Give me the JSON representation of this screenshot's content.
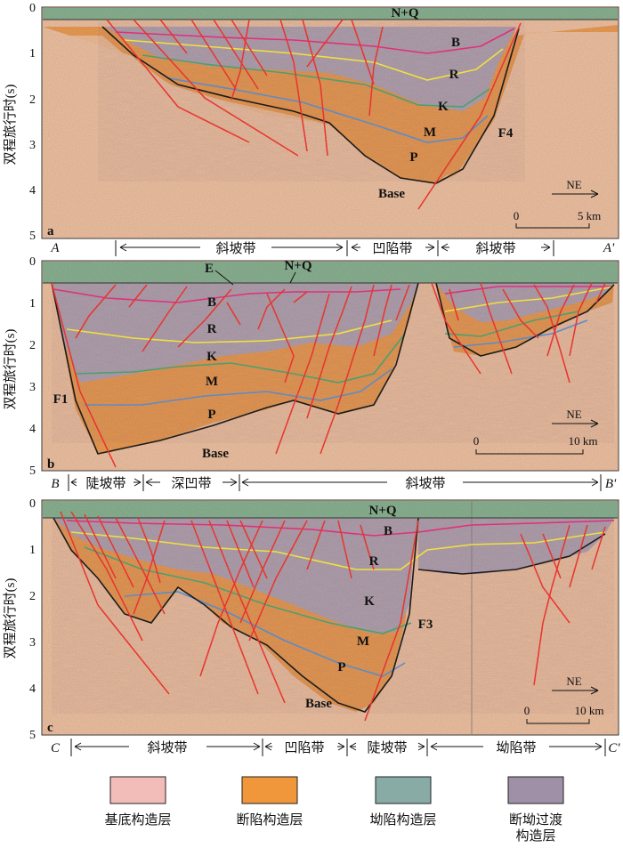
{
  "yaxis": {
    "label": "双程旅行时(s)",
    "ticks": [
      "0",
      "1",
      "2",
      "3",
      "4",
      "5"
    ]
  },
  "panels": [
    {
      "letter": "a",
      "units": [
        "N+Q",
        "B",
        "R",
        "K",
        "M",
        "P",
        "Base"
      ],
      "fault_labels": [
        "F4"
      ],
      "scale": {
        "dir": "NE",
        "start": "0",
        "end": "5 km"
      },
      "zones": {
        "left": "A",
        "right": "A'",
        "items": [
          "斜坡带",
          "凹陷带",
          "斜坡带"
        ]
      }
    },
    {
      "letter": "b",
      "units": [
        "E",
        "N+Q",
        "B",
        "R",
        "K",
        "M",
        "P",
        "Base"
      ],
      "fault_labels": [
        "F1"
      ],
      "scale": {
        "dir": "NE",
        "start": "0",
        "end": "10 km"
      },
      "zones": {
        "left": "B",
        "right": "B'",
        "items": [
          "陡坡带",
          "深凹带",
          "斜坡带"
        ]
      }
    },
    {
      "letter": "c",
      "units": [
        "N+Q",
        "B",
        "R",
        "K",
        "M",
        "P",
        "Base"
      ],
      "fault_labels": [
        "F3"
      ],
      "scale": {
        "dir": "NE",
        "start": "0",
        "end": "10 km"
      },
      "zones": {
        "left": "C",
        "right": "C'",
        "items": [
          "斜坡带",
          "凹陷带",
          "陡坡带",
          "坳陷带"
        ]
      }
    }
  ],
  "legend": [
    {
      "label": "基底构造层",
      "color": "#f2bdb9"
    },
    {
      "label": "断陷构造层",
      "color": "#f0963b"
    },
    {
      "label": "坳陷构造层",
      "color": "#88aca5"
    },
    {
      "label": "断坳过渡",
      "label2": "构造层",
      "color": "#9f90a8"
    }
  ],
  "colors": {
    "base": "#f2c4a4",
    "rift": "#ee9e55",
    "transition": "#b7a7b4",
    "depression": "#8cb494",
    "horizon_B": "#e0307a",
    "horizon_R": "#f0e040",
    "horizon_K": "#4aa070",
    "horizon_M": "#5a8cc8",
    "fault": "#e8342e"
  }
}
